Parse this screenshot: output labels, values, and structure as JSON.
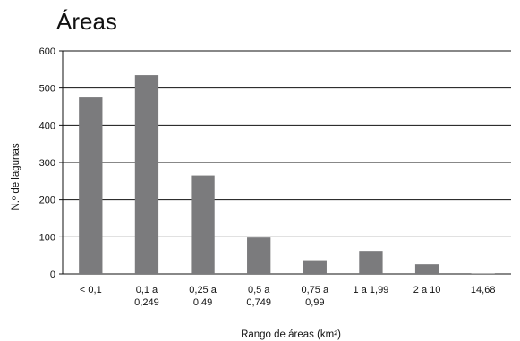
{
  "chart_data": {
    "type": "bar",
    "title": "Áreas",
    "xlabel": "Rango de áreas (km²)",
    "ylabel": "N.º de lagunas",
    "categories": [
      [
        "< 0,1"
      ],
      [
        "0,1 a",
        "0,249"
      ],
      [
        "0,25 a",
        "0,49"
      ],
      [
        "0,5 a",
        "0,749"
      ],
      [
        "0,75 a",
        "0,99"
      ],
      [
        "1 a 1,99"
      ],
      [
        "2 a 10"
      ],
      [
        "14,68"
      ]
    ],
    "values": [
      475,
      535,
      265,
      98,
      37,
      62,
      26,
      1
    ],
    "ylim": [
      0,
      600
    ],
    "yticks": [
      0,
      100,
      200,
      300,
      400,
      500,
      600
    ],
    "grid": true,
    "legend": "none",
    "bar_color": "#7b7b7d",
    "grid_color": "#111111"
  }
}
